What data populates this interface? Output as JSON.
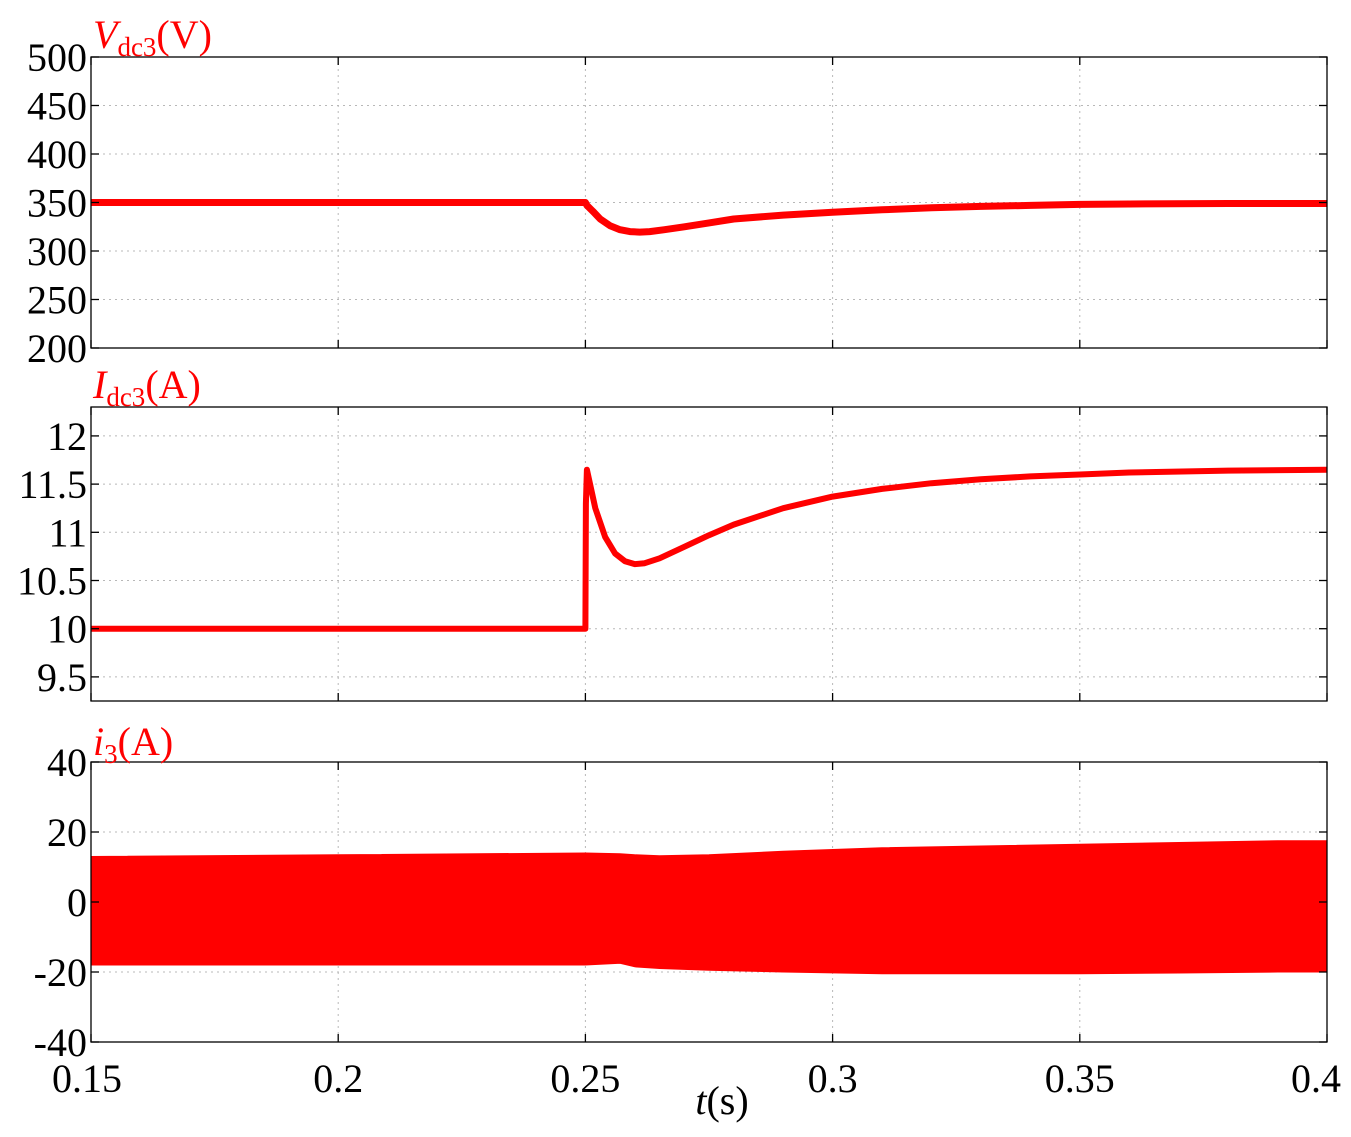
{
  "colors": {
    "trace": "#ff0000",
    "axis": "#000000",
    "grid": "#b8b8b8"
  },
  "xaxis": {
    "label_italic": "t",
    "label_unit": "(s)",
    "range": [
      0.15,
      0.4
    ],
    "ticks": [
      0.15,
      0.2,
      0.25,
      0.3,
      0.35,
      0.4
    ],
    "tick_labels": [
      "0.15",
      "0.2",
      "0.25",
      "0.3",
      "0.35",
      "0.4"
    ]
  },
  "chart_data": [
    {
      "type": "line",
      "title_symbol": "V",
      "title_sub": "dc3",
      "title_unit": "(V)",
      "xlim": [
        0.15,
        0.4
      ],
      "ylim": [
        200,
        500
      ],
      "yticks": [
        200,
        250,
        300,
        350,
        400,
        450,
        500
      ],
      "ytick_labels": [
        "200",
        "250",
        "300",
        "350",
        "400",
        "450",
        "500"
      ],
      "grid": true,
      "x": [
        0.15,
        0.2,
        0.25,
        0.2503,
        0.2515,
        0.253,
        0.255,
        0.257,
        0.259,
        0.261,
        0.263,
        0.266,
        0.27,
        0.275,
        0.28,
        0.29,
        0.3,
        0.31,
        0.32,
        0.33,
        0.34,
        0.35,
        0.36,
        0.38,
        0.4
      ],
      "y": [
        350,
        350,
        350,
        347,
        341,
        333,
        326,
        322,
        320,
        319.5,
        320,
        322,
        325,
        329,
        333,
        337,
        340,
        342.5,
        344.5,
        346,
        347,
        348,
        348.5,
        349,
        349
      ]
    },
    {
      "type": "line",
      "title_symbol": "I",
      "title_sub": "dc3",
      "title_unit": "(A)",
      "xlim": [
        0.15,
        0.4
      ],
      "ylim": [
        9.25,
        12.3
      ],
      "yticks": [
        9.5,
        10,
        10.5,
        11,
        11.5,
        12
      ],
      "ytick_labels": [
        "9.5",
        "10",
        "10.5",
        "11",
        "11.5",
        "12"
      ],
      "grid": true,
      "x": [
        0.15,
        0.2,
        0.25,
        0.2501,
        0.2503,
        0.252,
        0.254,
        0.256,
        0.258,
        0.26,
        0.262,
        0.265,
        0.27,
        0.275,
        0.28,
        0.29,
        0.3,
        0.31,
        0.32,
        0.33,
        0.34,
        0.35,
        0.36,
        0.38,
        0.4
      ],
      "y": [
        10,
        10,
        10,
        11.3,
        11.65,
        11.25,
        10.95,
        10.78,
        10.7,
        10.67,
        10.68,
        10.73,
        10.85,
        10.97,
        11.08,
        11.25,
        11.37,
        11.45,
        11.51,
        11.55,
        11.58,
        11.6,
        11.62,
        11.64,
        11.65
      ]
    },
    {
      "type": "area",
      "title_symbol": "i",
      "title_sub": "3",
      "title_unit": "(A)",
      "xlim": [
        0.15,
        0.4
      ],
      "ylim": [
        -40,
        40
      ],
      "yticks": [
        -40,
        -20,
        0,
        20,
        40
      ],
      "ytick_labels": [
        "-40",
        "-20",
        "0",
        "20",
        "40"
      ],
      "grid": true,
      "x": [
        0.15,
        0.2,
        0.25,
        0.257,
        0.26,
        0.265,
        0.275,
        0.29,
        0.31,
        0.33,
        0.35,
        0.37,
        0.39,
        0.4
      ],
      "upper": [
        13,
        13.5,
        14,
        13.8,
        13.5,
        13.2,
        13.5,
        14.5,
        15.5,
        16,
        16.5,
        17,
        17.5,
        17.5
      ],
      "lower": [
        -18,
        -18,
        -18,
        -17.5,
        -18.5,
        -19,
        -19.5,
        -20,
        -20.5,
        -20.5,
        -20.5,
        -20.3,
        -20,
        -20
      ]
    }
  ]
}
